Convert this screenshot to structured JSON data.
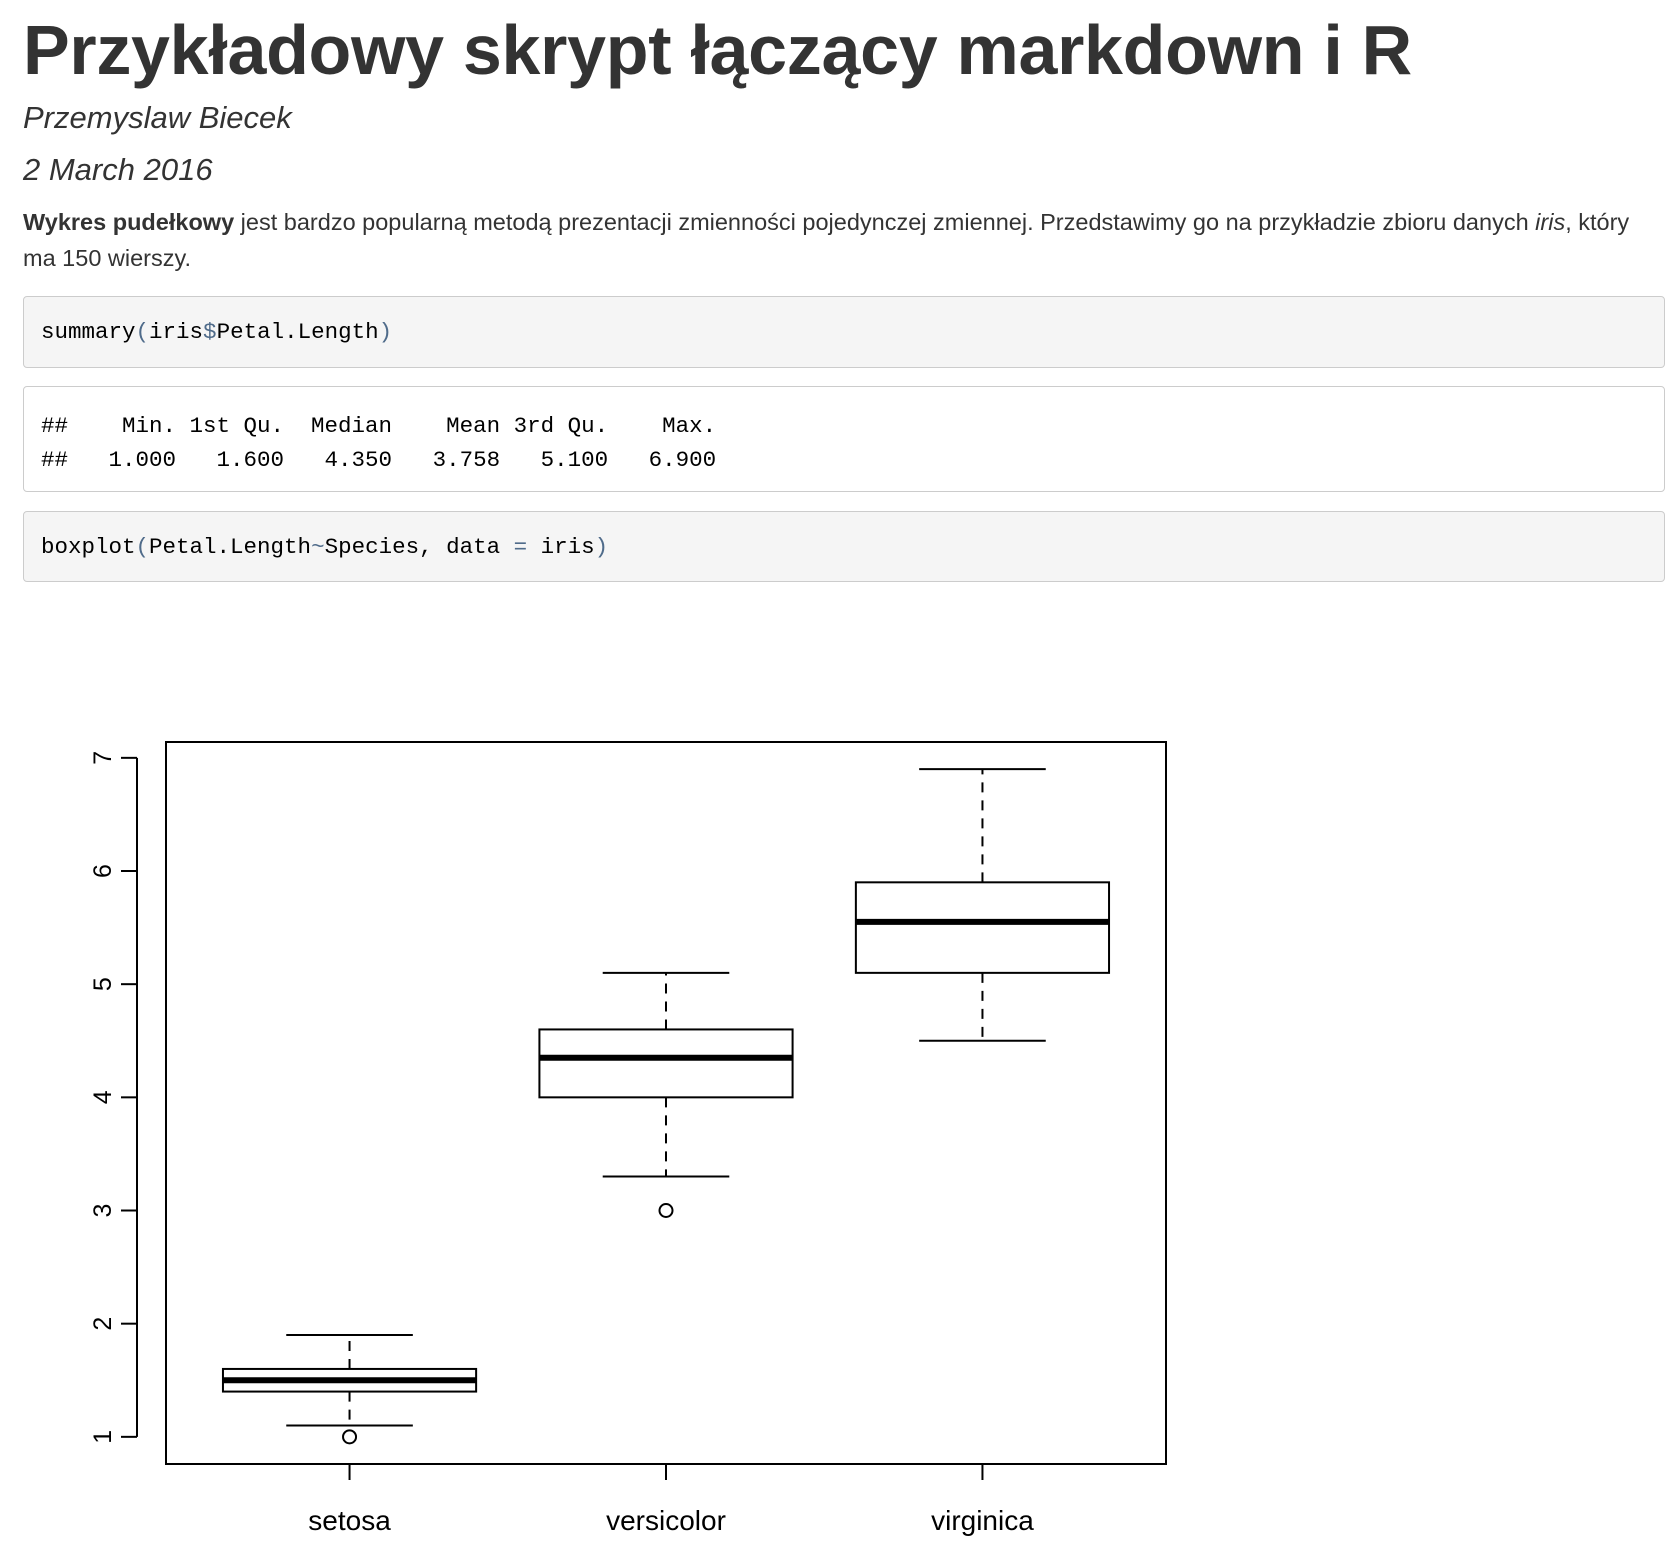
{
  "document": {
    "title": "Przykładowy skrypt łączący markdown i R",
    "author": "Przemyslaw Biecek",
    "date": "2 March 2016",
    "paragraph": {
      "bold": "Wykres pudełkowy",
      "text1": " jest bardzo popularną metodą prezentacji zmienności pojedynczej zmiennej. Przedstawimy go na przykładzie zbioru danych ",
      "italic": "iris",
      "text2": ", który ma 150 wierszy."
    },
    "code1": {
      "fn": "summary",
      "open": "(",
      "arg1": "iris",
      "op": "$",
      "arg2": "Petal.Length",
      "close": ")"
    },
    "output1": {
      "line1": "##    Min. 1st Qu.  Median    Mean 3rd Qu.    Max. ",
      "line2": "##   1.000   1.600   4.350   3.758   5.100   6.900 "
    },
    "code2": {
      "fn": "boxplot",
      "open": "(",
      "arg1": "Petal.Length",
      "op1": "~",
      "arg2": "Species, data ",
      "op2": "=",
      "arg3": " iris",
      "close": ")"
    }
  },
  "chart_data": {
    "type": "boxplot",
    "categories": [
      "setosa",
      "versicolor",
      "virginica"
    ],
    "boxes": [
      {
        "name": "setosa",
        "lower_whisker": 1.1,
        "q1": 1.4,
        "median": 1.5,
        "q3": 1.6,
        "upper_whisker": 1.9,
        "outliers": [
          1.0
        ]
      },
      {
        "name": "versicolor",
        "lower_whisker": 3.3,
        "q1": 4.0,
        "median": 4.35,
        "q3": 4.6,
        "upper_whisker": 5.1,
        "outliers": [
          3.0
        ]
      },
      {
        "name": "virginica",
        "lower_whisker": 4.5,
        "q1": 5.1,
        "median": 5.55,
        "q3": 5.9,
        "upper_whisker": 6.9,
        "outliers": []
      }
    ],
    "y_ticks": [
      "1",
      "2",
      "3",
      "4",
      "5",
      "6",
      "7"
    ],
    "ylim": [
      0.76,
      7.14
    ],
    "xlabel": "",
    "ylabel": "",
    "title": "",
    "grid": false,
    "colors": {
      "stroke": "#000000",
      "box_fill": "#ffffff"
    }
  }
}
